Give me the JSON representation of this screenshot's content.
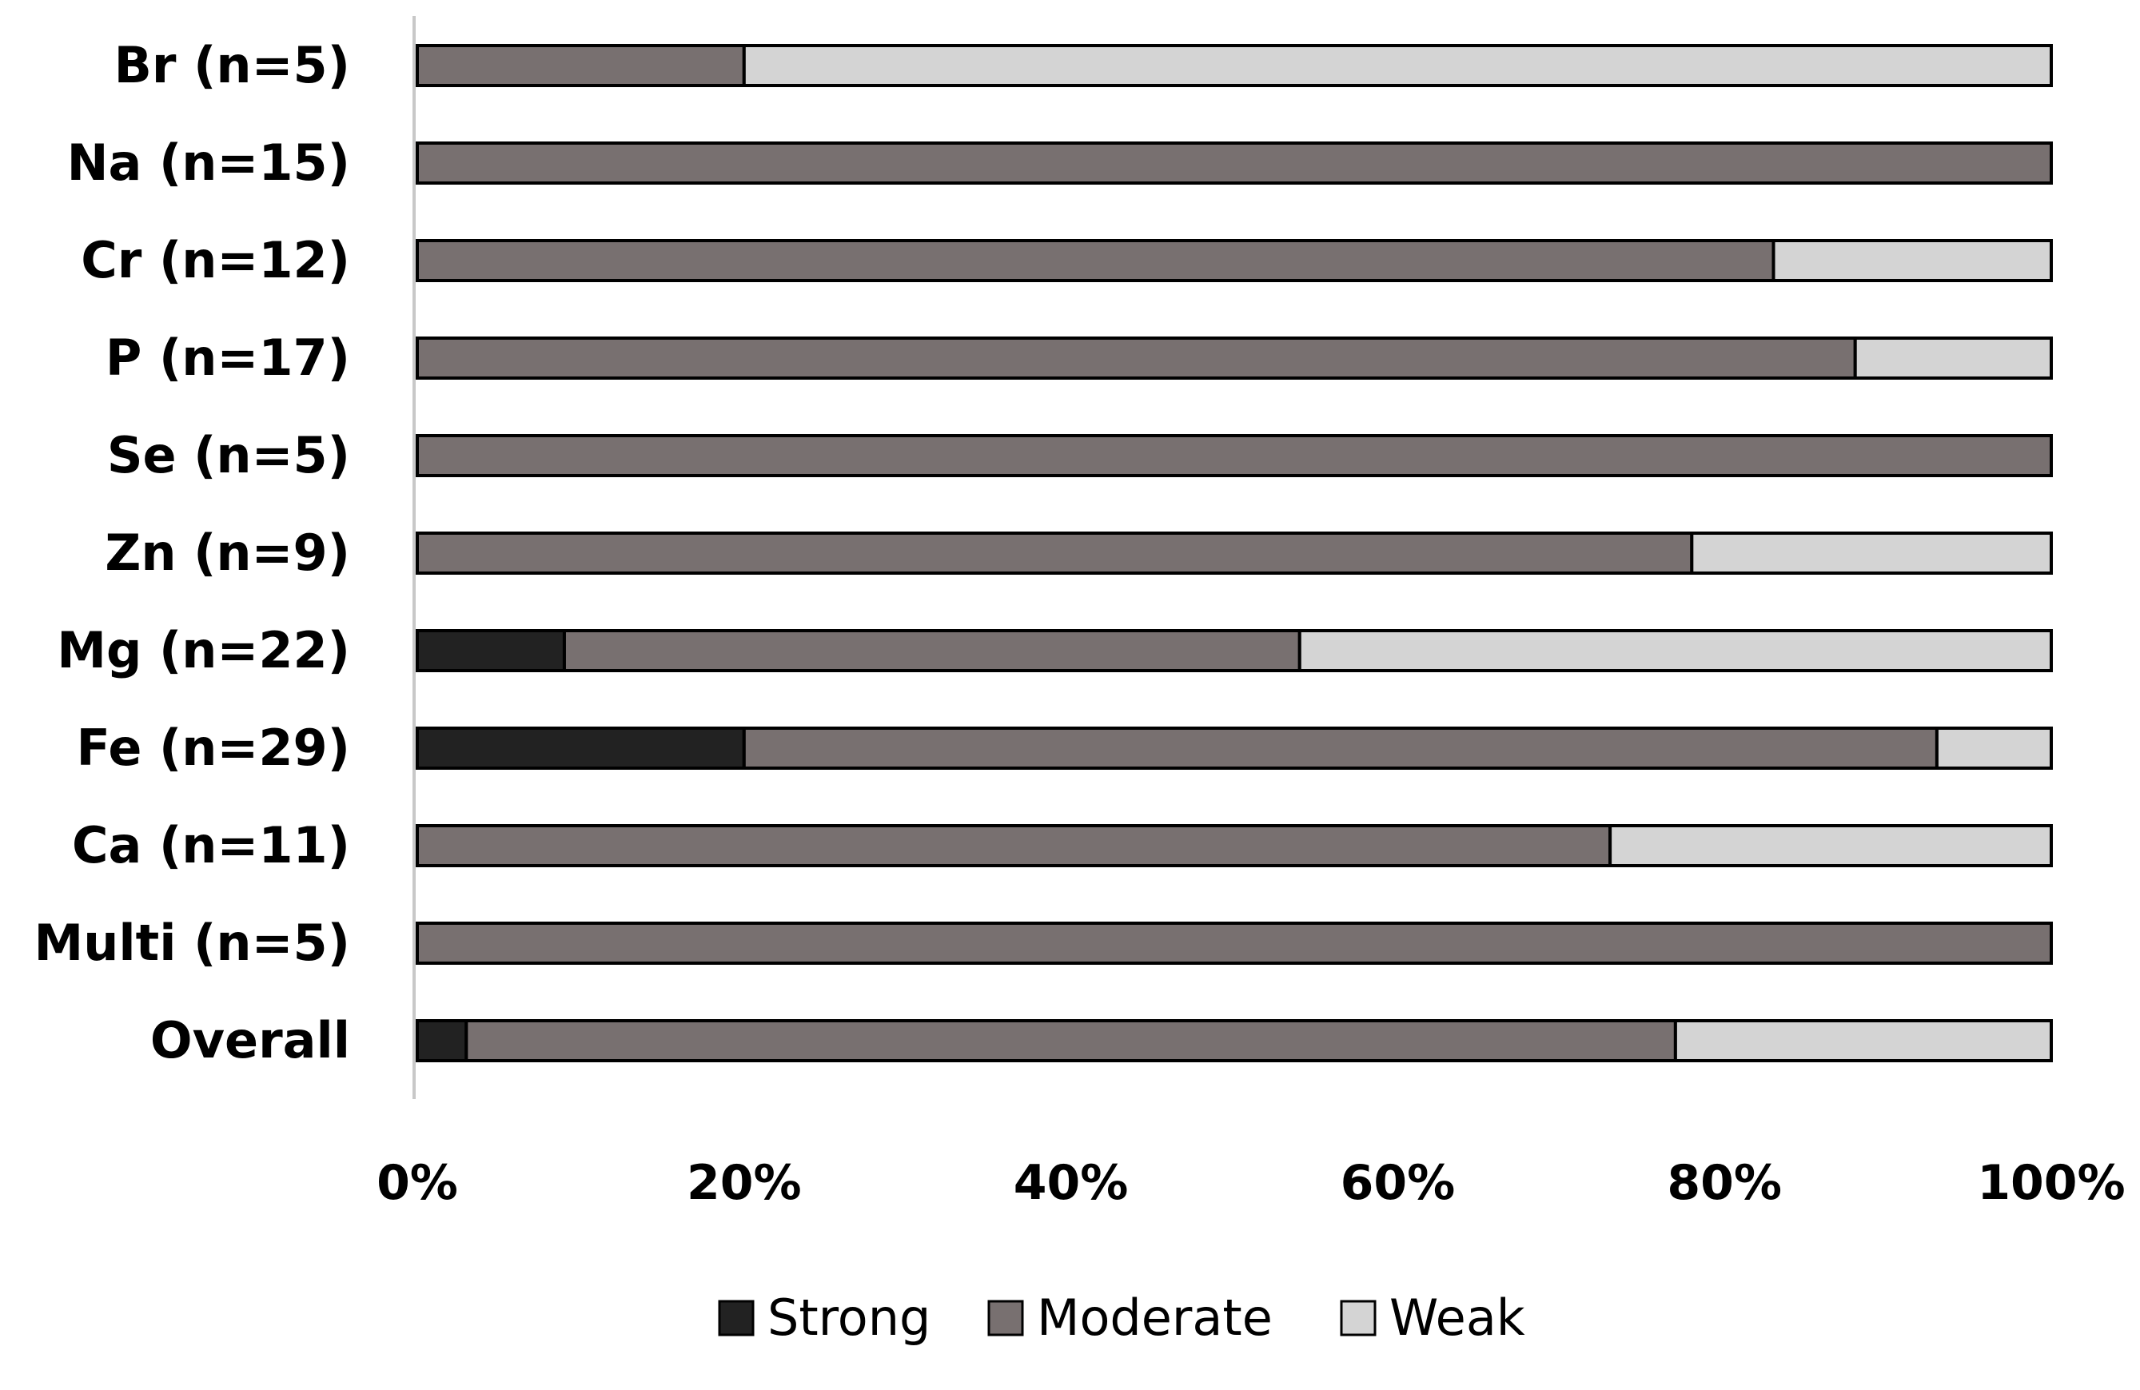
{
  "chart_data": {
    "type": "bar",
    "orientation": "horizontal",
    "stacked": true,
    "percent_stacked": true,
    "categories": [
      "Br (n=5)",
      "Na (n=15)",
      "Cr (n=12)",
      "P (n=17)",
      "Se (n=5)",
      "Zn (n=9)",
      "Mg (n=22)",
      "Fe (n=29)",
      "Ca (n=11)",
      "Multi (n=5)",
      "Overall"
    ],
    "series": [
      {
        "name": "Strong",
        "color": "#222222",
        "values": [
          0,
          0,
          0,
          0,
          0,
          0,
          9,
          20,
          0,
          0,
          3
        ]
      },
      {
        "name": "Moderate",
        "color": "#787070",
        "values": [
          20,
          100,
          83,
          88,
          100,
          78,
          45,
          73,
          73,
          100,
          74
        ]
      },
      {
        "name": "Weak",
        "color": "#d4d4d4",
        "values": [
          80,
          0,
          17,
          12,
          0,
          22,
          46,
          7,
          27,
          0,
          23
        ]
      }
    ],
    "xlim": [
      0,
      100
    ],
    "x_ticks": [
      "0%",
      "20%",
      "40%",
      "60%",
      "80%",
      "100%"
    ],
    "title": "",
    "xlabel": "",
    "ylabel": "",
    "legend_position": "bottom",
    "grid": false
  }
}
